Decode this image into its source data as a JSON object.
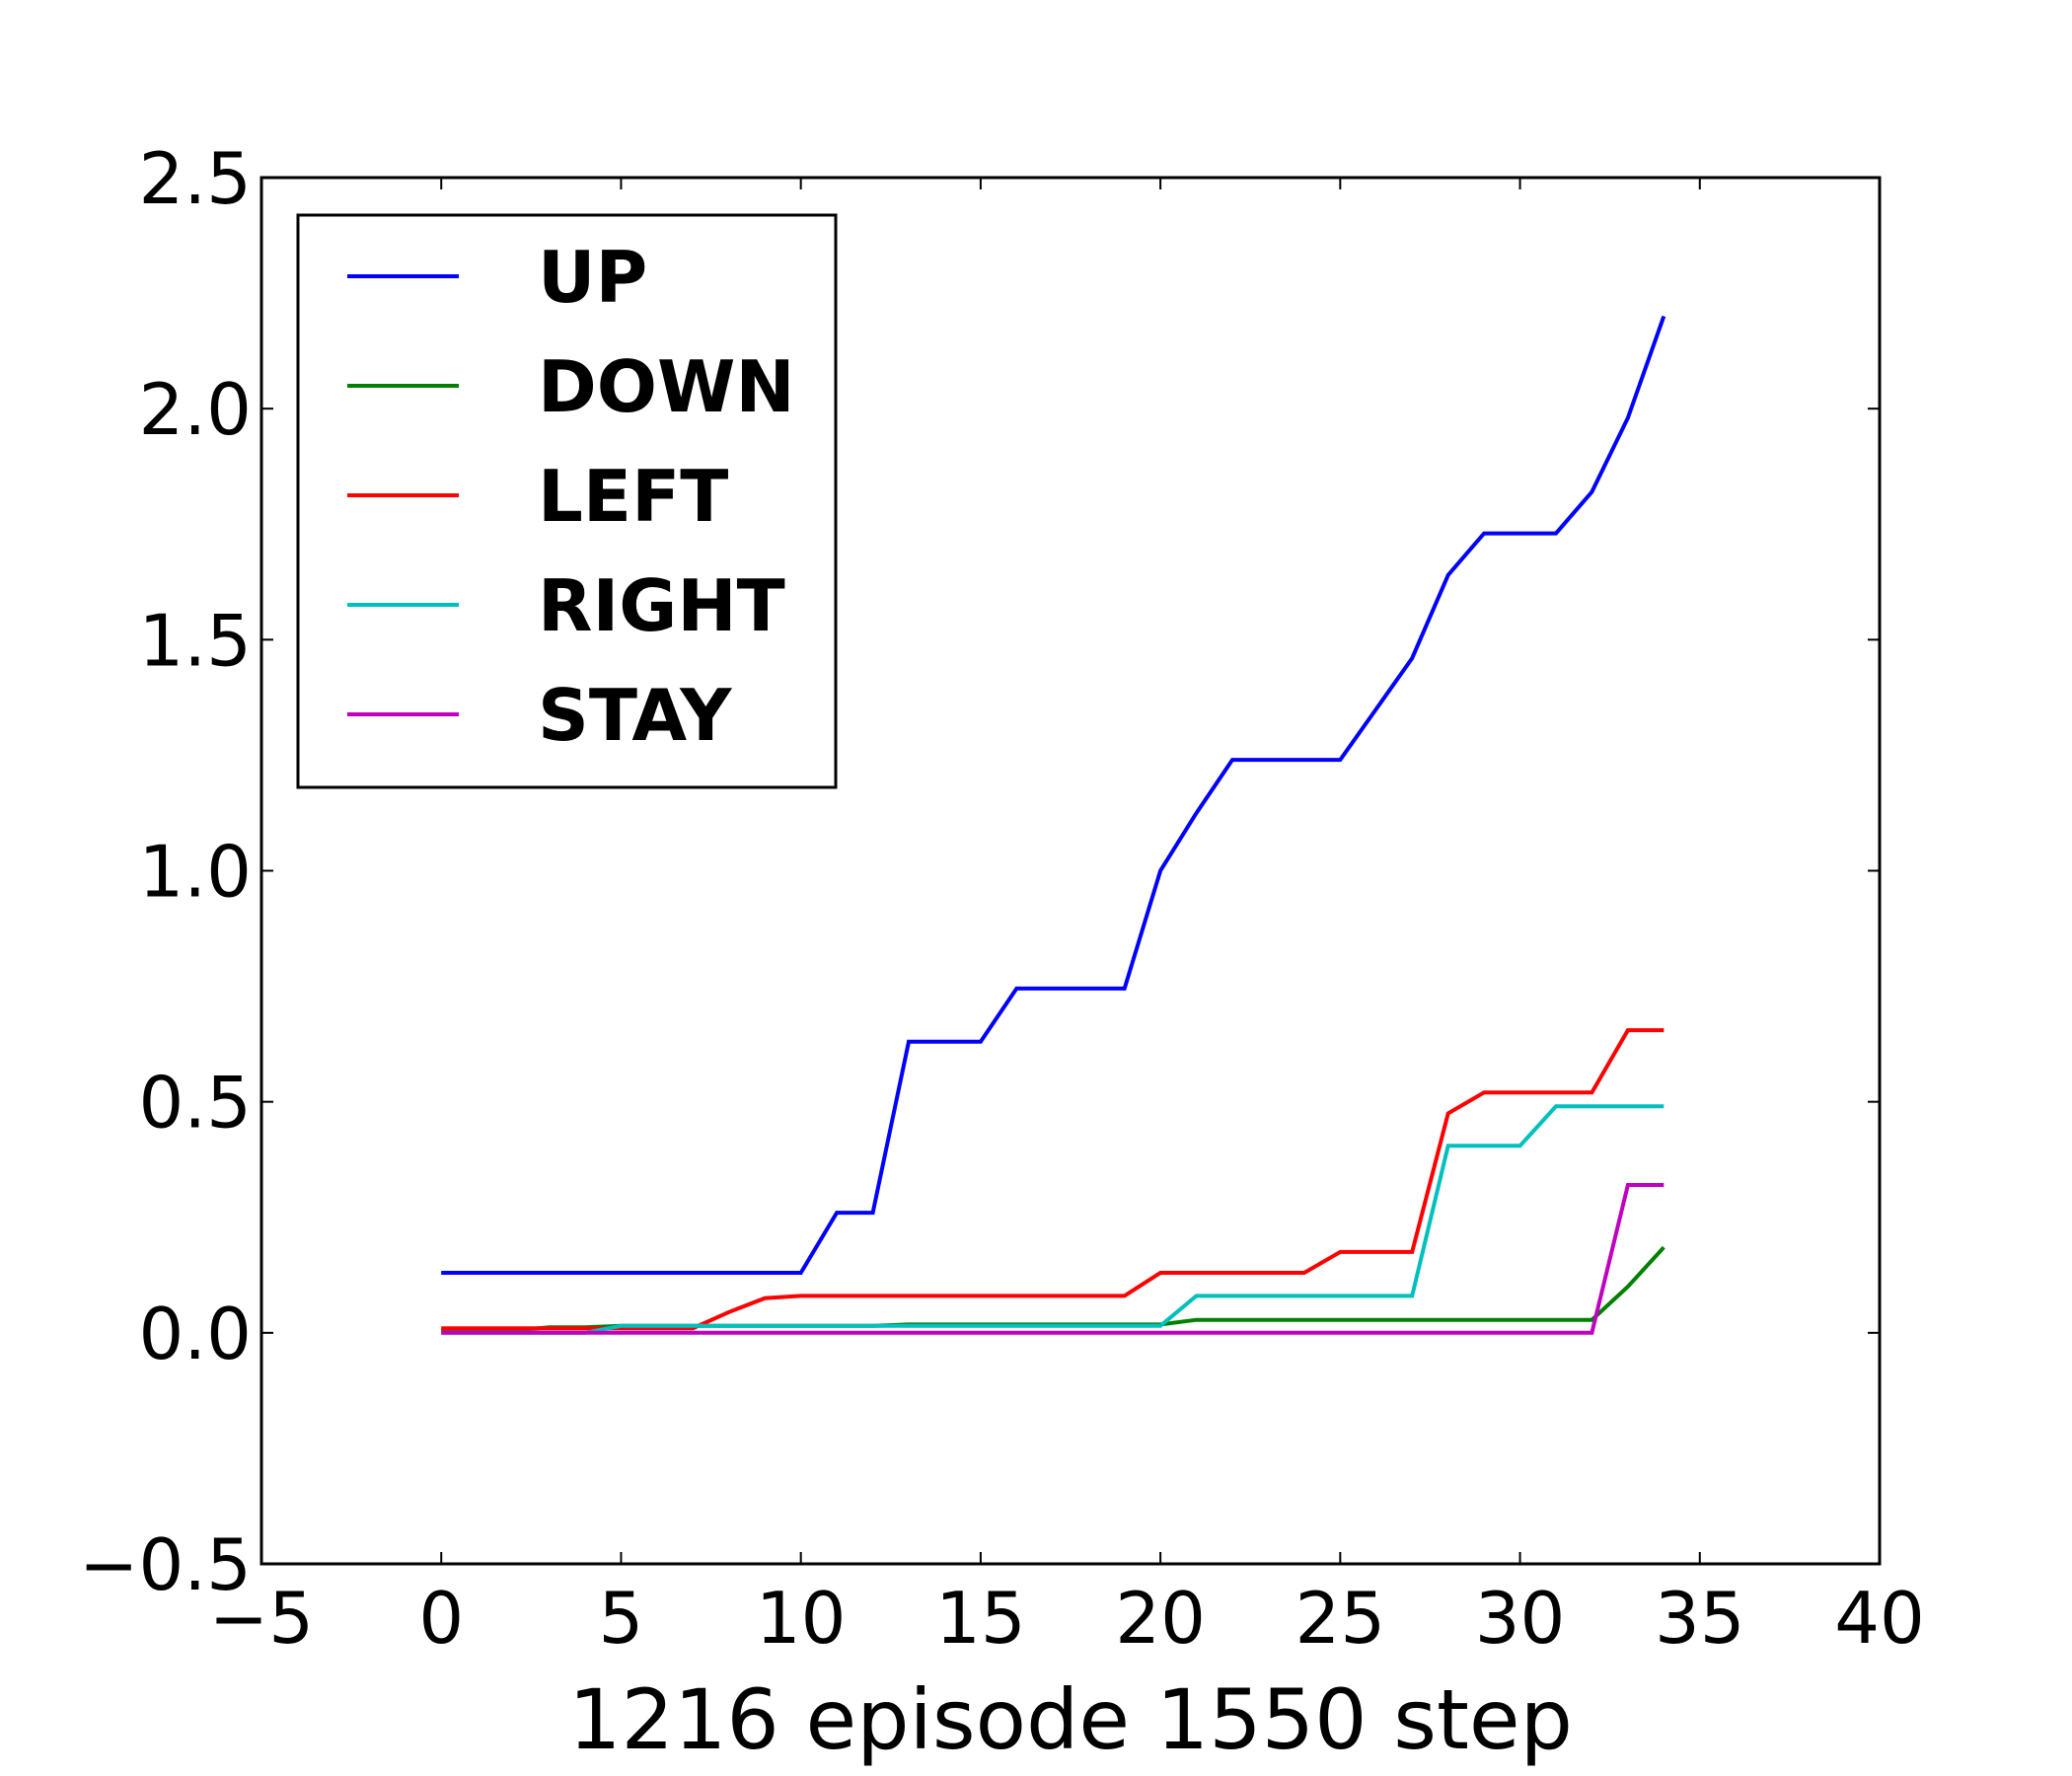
{
  "chart_data": {
    "type": "line",
    "title": "",
    "xlabel": "1216 episode 1550 step",
    "ylabel": "",
    "xlim": [
      -5,
      40
    ],
    "ylim": [
      -0.5,
      2.5
    ],
    "xticks": [
      -5,
      0,
      5,
      10,
      15,
      20,
      25,
      30,
      35,
      40
    ],
    "xtick_labels": [
      "−5",
      "0",
      "5",
      "10",
      "15",
      "20",
      "25",
      "30",
      "35",
      "40"
    ],
    "yticks": [
      -0.5,
      0.0,
      0.5,
      1.0,
      1.5,
      2.0,
      2.5
    ],
    "ytick_labels": [
      "−0.5",
      "0.0",
      "0.5",
      "1.0",
      "1.5",
      "2.0",
      "2.5"
    ],
    "grid": false,
    "legend_position": "upper-left",
    "x": [
      0,
      1,
      2,
      3,
      4,
      5,
      6,
      7,
      8,
      9,
      10,
      11,
      12,
      13,
      14,
      15,
      16,
      17,
      18,
      19,
      20,
      21,
      22,
      23,
      24,
      25,
      26,
      27,
      28,
      29,
      30,
      31,
      32,
      33,
      34
    ],
    "series": [
      {
        "name": "UP",
        "color": "#0000ff",
        "values": [
          0.13,
          0.13,
          0.13,
          0.13,
          0.13,
          0.13,
          0.13,
          0.13,
          0.13,
          0.13,
          0.13,
          0.26,
          0.26,
          0.63,
          0.63,
          0.63,
          0.745,
          0.745,
          0.745,
          0.745,
          1.0,
          1.125,
          1.24,
          1.24,
          1.24,
          1.24,
          1.35,
          1.46,
          1.64,
          1.73,
          1.73,
          1.73,
          1.82,
          1.98,
          2.2
        ]
      },
      {
        "name": "DOWN",
        "color": "#008000",
        "values": [
          0.005,
          0.005,
          0.005,
          0.012,
          0.012,
          0.015,
          0.015,
          0.015,
          0.015,
          0.015,
          0.015,
          0.015,
          0.015,
          0.018,
          0.018,
          0.018,
          0.018,
          0.018,
          0.018,
          0.018,
          0.018,
          0.028,
          0.028,
          0.028,
          0.028,
          0.028,
          0.028,
          0.028,
          0.028,
          0.028,
          0.028,
          0.028,
          0.028,
          0.1,
          0.185
        ]
      },
      {
        "name": "LEFT",
        "color": "#ff0000",
        "values": [
          0.01,
          0.01,
          0.01,
          0.01,
          0.01,
          0.01,
          0.01,
          0.01,
          0.045,
          0.075,
          0.08,
          0.08,
          0.08,
          0.08,
          0.08,
          0.08,
          0.08,
          0.08,
          0.08,
          0.08,
          0.13,
          0.13,
          0.13,
          0.13,
          0.13,
          0.175,
          0.175,
          0.175,
          0.475,
          0.52,
          0.52,
          0.52,
          0.52,
          0.655,
          0.655
        ]
      },
      {
        "name": "RIGHT",
        "color": "#00bfbf",
        "values": [
          0.0,
          0.0,
          0.0,
          0.0,
          0.0,
          0.015,
          0.015,
          0.015,
          0.015,
          0.015,
          0.015,
          0.015,
          0.015,
          0.015,
          0.015,
          0.015,
          0.015,
          0.015,
          0.015,
          0.015,
          0.015,
          0.08,
          0.08,
          0.08,
          0.08,
          0.08,
          0.08,
          0.08,
          0.405,
          0.405,
          0.405,
          0.49,
          0.49,
          0.49,
          0.49
        ]
      },
      {
        "name": "STAY",
        "color": "#bf00bf",
        "values": [
          0.0,
          0.0,
          0.0,
          0.0,
          0.0,
          0.0,
          0.0,
          0.0,
          0.0,
          0.0,
          0.0,
          0.0,
          0.0,
          0.0,
          0.0,
          0.0,
          0.0,
          0.0,
          0.0,
          0.0,
          0.0,
          0.0,
          0.0,
          0.0,
          0.0,
          0.0,
          0.0,
          0.0,
          0.0,
          0.0,
          0.0,
          0.0,
          0.0,
          0.32,
          0.32
        ]
      }
    ]
  }
}
